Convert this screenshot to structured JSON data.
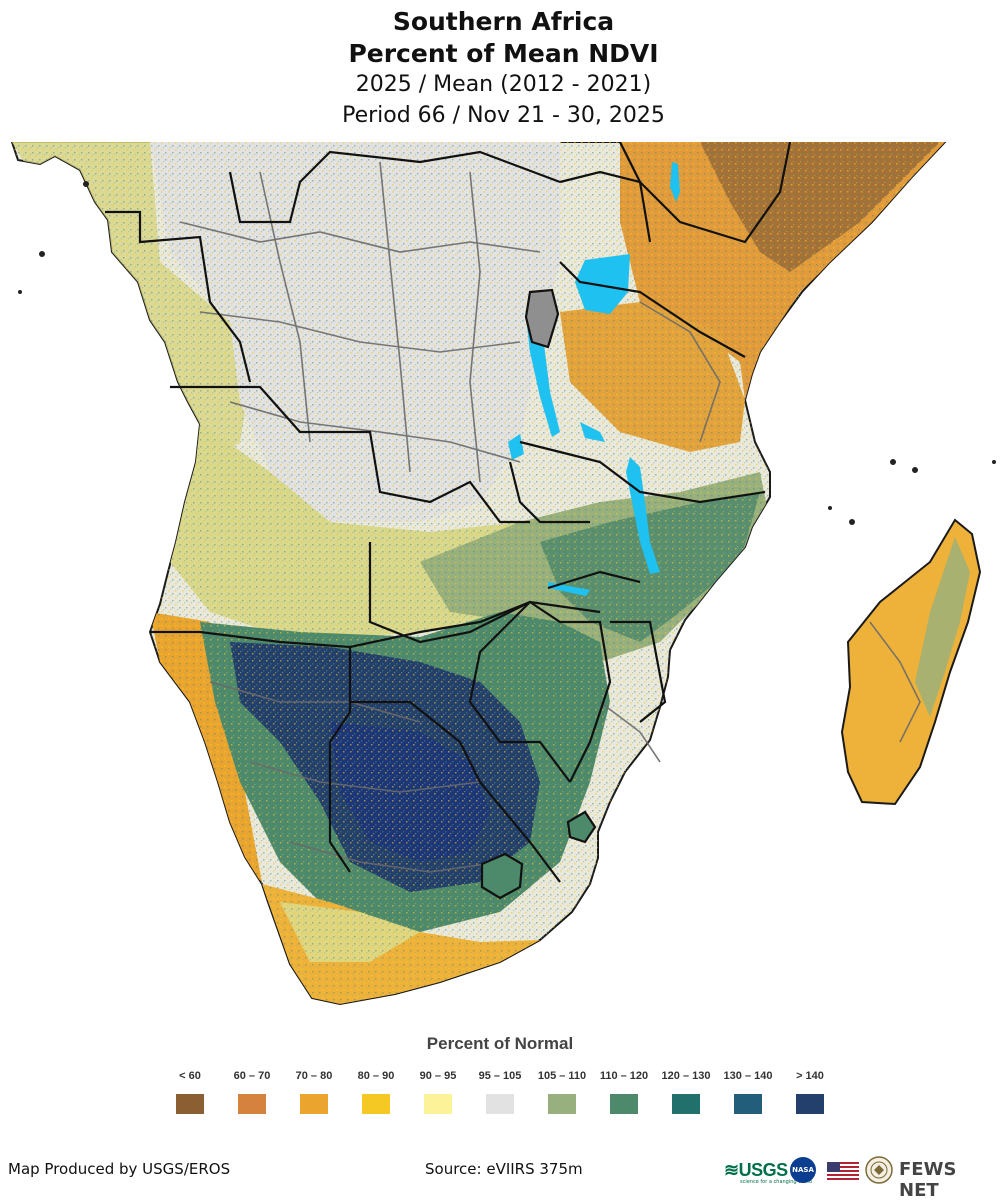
{
  "title": {
    "region": "Southern Africa",
    "product": "Percent of Mean NDVI",
    "comparison": "2025 / Mean (2012 - 2021)",
    "period": "Period 66 / Nov 21 - 30, 2025"
  },
  "legend": {
    "title": "Percent of Normal",
    "classes": [
      {
        "label": "< 60",
        "color": "#8c5f32"
      },
      {
        "label": "60 – 70",
        "color": "#d4823e"
      },
      {
        "label": "70 – 80",
        "color": "#eba42e"
      },
      {
        "label": "80 – 90",
        "color": "#f6c823"
      },
      {
        "label": "90 – 95",
        "color": "#fbf29a"
      },
      {
        "label": "95 – 105",
        "color": "#e2e2e2"
      },
      {
        "label": "105 – 110",
        "color": "#97b07e"
      },
      {
        "label": "110 – 120",
        "color": "#4d8a6b"
      },
      {
        "label": "120 – 130",
        "color": "#21706c"
      },
      {
        "label": "130 – 140",
        "color": "#225d7c"
      },
      {
        "label": "> 140",
        "color": "#233f6c"
      }
    ]
  },
  "map": {
    "ocean_color": "#ffffff",
    "lake_color": "#1ec1ef",
    "border_color": "#1a1a1a",
    "admin_color": "#6a6a6a"
  },
  "footer": {
    "producer": "Map Produced by USGS/EROS",
    "source": "Source: eVIIRS 375m",
    "logos": {
      "usgs": "≋USGS",
      "usgs_tagline": "science for a changing world",
      "nasa": "NASA",
      "fews": "FEWS NET"
    }
  }
}
